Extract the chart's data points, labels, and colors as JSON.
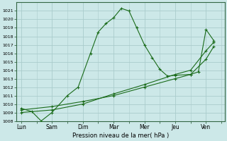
{
  "xlabel": "Pression niveau de la mer( hPa )",
  "ylim": [
    1008,
    1022
  ],
  "yticks": [
    1008,
    1009,
    1010,
    1011,
    1012,
    1013,
    1014,
    1015,
    1016,
    1017,
    1018,
    1019,
    1020,
    1021
  ],
  "bg_color": "#cce8e8",
  "grid_color": "#aacccc",
  "line_color": "#1a6b1a",
  "days": [
    "Lun",
    "Sam",
    "Dim",
    "Mar",
    "Mer",
    "Jeu",
    "Ven"
  ],
  "day_positions": [
    0,
    2,
    4,
    6,
    8,
    10,
    12
  ],
  "xmin": -0.3,
  "xmax": 13.2,
  "line1_x": [
    0,
    0.7,
    1.3,
    2,
    3,
    3.7,
    4.5,
    5,
    5.5,
    6,
    6.5,
    7,
    7.5,
    8,
    8.5,
    9,
    9.5,
    10,
    11,
    11.5,
    12,
    12.5
  ],
  "line1_y": [
    1009.5,
    1009.1,
    1008.0,
    1009.0,
    1011.0,
    1012.0,
    1016.0,
    1018.5,
    1019.5,
    1020.2,
    1021.3,
    1021.0,
    1019.0,
    1017.0,
    1015.5,
    1014.1,
    1013.3,
    1013.4,
    1013.5,
    1013.8,
    1018.8,
    1017.5
  ],
  "line2_x": [
    0,
    2,
    4,
    6,
    8,
    10,
    11,
    12,
    12.5
  ],
  "line2_y": [
    1009.0,
    1009.3,
    1010.0,
    1011.2,
    1012.3,
    1013.5,
    1014.0,
    1016.3,
    1017.3
  ],
  "line3_x": [
    0,
    2,
    4,
    6,
    8,
    10,
    11,
    12,
    12.5
  ],
  "line3_y": [
    1009.3,
    1009.7,
    1010.3,
    1011.0,
    1012.0,
    1013.0,
    1013.5,
    1015.3,
    1016.8
  ]
}
